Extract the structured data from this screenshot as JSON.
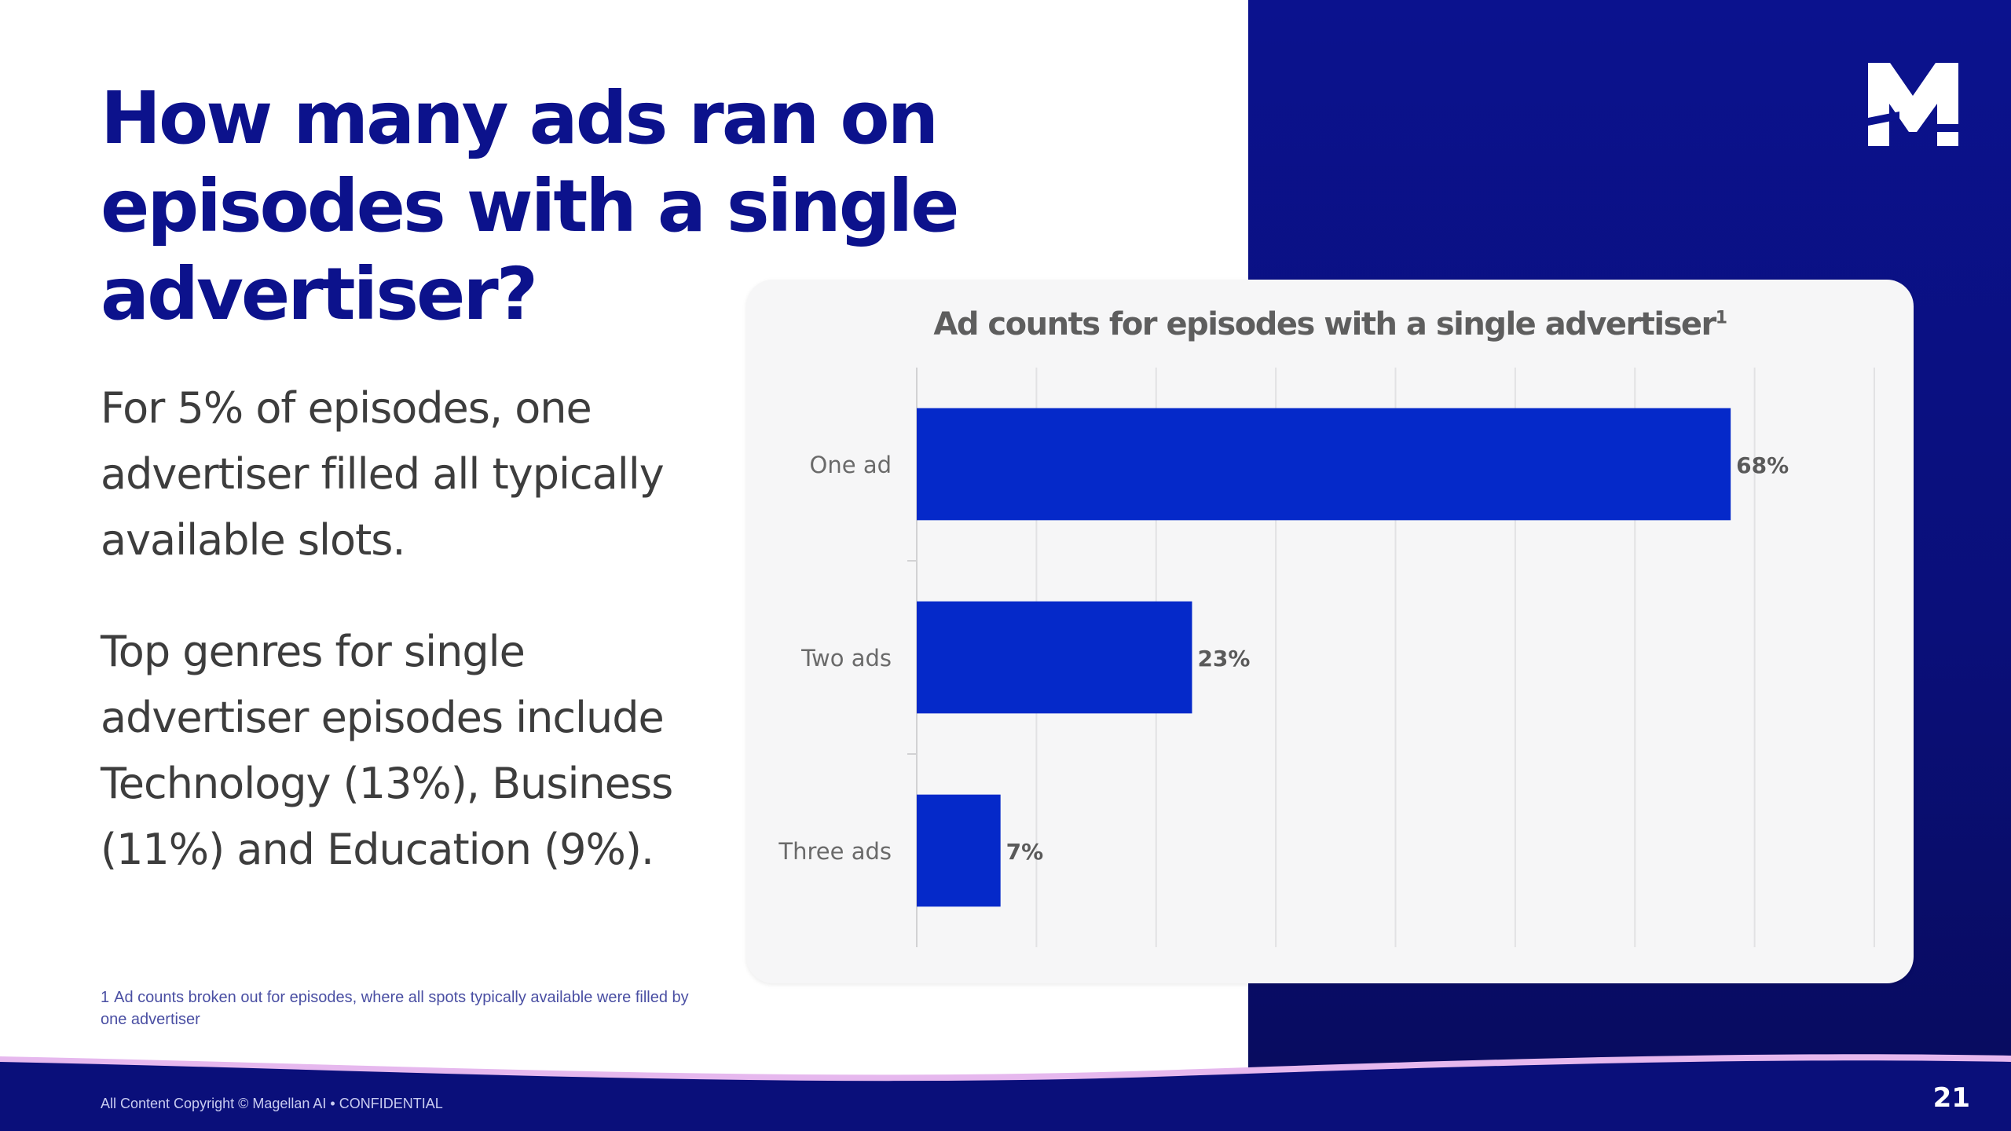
{
  "slide": {
    "title": "How many ads ran on episodes with a single advertiser?",
    "paragraph1": "For 5% of episodes, one advertiser filled all typically available slots.",
    "paragraph2": "Top genres for single advertiser episodes include Technology (13%), Business (11%) and Education (9%).",
    "footnote_number": "1",
    "footnote_text": "Ad counts broken out for episodes, where all spots typically available were filled by one advertiser",
    "copyright": "All Content Copyright © Magellan AI • CONFIDENTIAL",
    "page_number": "21",
    "logo": "magellan-m-logo"
  },
  "colors": {
    "brand_navy": "#0c128c",
    "bar": "#0529c9",
    "panel": "#0b128e"
  },
  "chart_data": {
    "type": "bar",
    "orientation": "horizontal",
    "title": "Ad counts for episodes with a single advertiser",
    "title_footnote_marker": "1",
    "categories": [
      "One ad",
      "Two ads",
      "Three ads"
    ],
    "values": [
      68,
      23,
      7
    ],
    "value_labels": [
      "68%",
      "23%",
      "7%"
    ],
    "xlim": [
      0,
      80
    ],
    "grid": true,
    "legend": "none"
  }
}
